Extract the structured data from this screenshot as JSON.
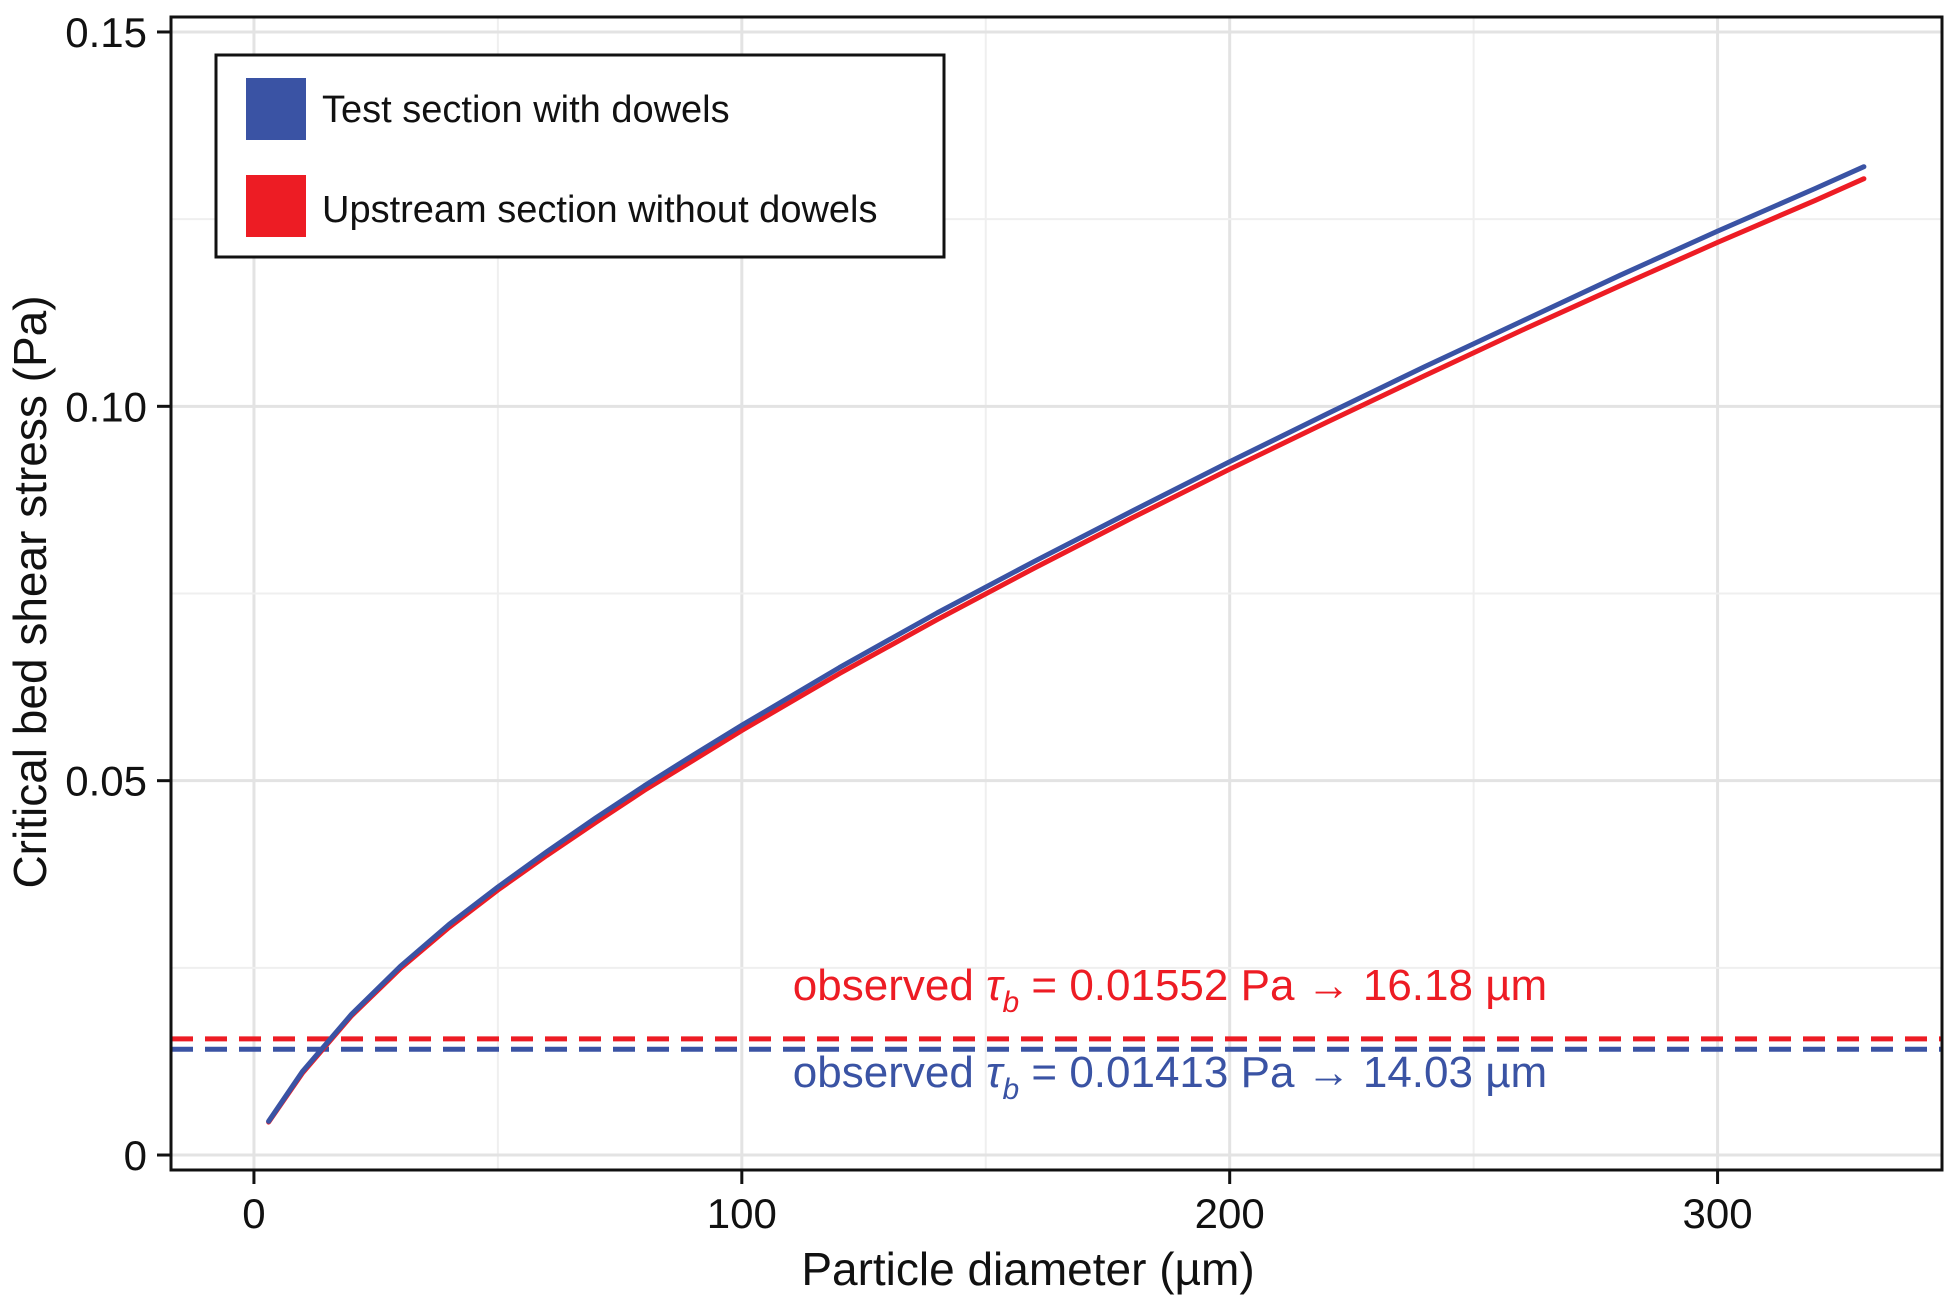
{
  "chart_data": {
    "type": "line",
    "title": "",
    "xlabel": "Particle diameter (µm)",
    "ylabel": "Critical bed shear stress (Pa)",
    "xlim": [
      -17,
      346
    ],
    "ylim": [
      -0.002,
      0.152
    ],
    "grid": true,
    "x_ticks": [
      "0",
      "100",
      "200",
      "300"
    ],
    "y_ticks": [
      "0",
      "0.05",
      "0.10",
      "0.15"
    ],
    "legend_position": "top-left",
    "series": [
      {
        "name": "Test section with dowels",
        "color": "#3a53a4",
        "x": [
          3,
          10,
          20,
          30,
          40,
          50,
          60,
          70,
          80,
          90,
          100,
          120,
          140,
          160,
          180,
          200,
          220,
          240,
          260,
          280,
          300,
          320,
          330
        ],
        "y": [
          0.0045,
          0.0112,
          0.0188,
          0.0252,
          0.0308,
          0.0358,
          0.0405,
          0.045,
          0.0493,
          0.0534,
          0.0574,
          0.0651,
          0.0724,
          0.0793,
          0.086,
          0.0926,
          0.099,
          0.1053,
          0.1114,
          0.1175,
          0.1234,
          0.1291,
          0.132
        ]
      },
      {
        "name": "Upstream section without dowels",
        "color": "#ed1c24",
        "x": [
          3,
          10,
          20,
          30,
          40,
          50,
          60,
          70,
          80,
          90,
          100,
          120,
          140,
          160,
          180,
          200,
          220,
          240,
          260,
          280,
          300,
          320,
          330
        ],
        "y": [
          0.0044,
          0.011,
          0.0186,
          0.0249,
          0.0304,
          0.0354,
          0.04,
          0.0444,
          0.0487,
          0.0527,
          0.0567,
          0.0643,
          0.0715,
          0.0784,
          0.0851,
          0.0916,
          0.0979,
          0.1041,
          0.1102,
          0.1161,
          0.1219,
          0.1275,
          0.1304
        ]
      }
    ],
    "reference_lines": [
      {
        "y": 0.01552,
        "color": "#ed1c24",
        "style": "dashed",
        "label_prefix": "observed ",
        "label_symbol": "τ",
        "label_subscript": "b",
        "label_suffix": " = 0.01552 Pa → 16.18 µm"
      },
      {
        "y": 0.01413,
        "color": "#3a53a4",
        "style": "dashed",
        "label_prefix": "observed ",
        "label_symbol": "τ",
        "label_subscript": "b",
        "label_suffix": " = 0.01413 Pa → 14.03 µm"
      }
    ]
  }
}
